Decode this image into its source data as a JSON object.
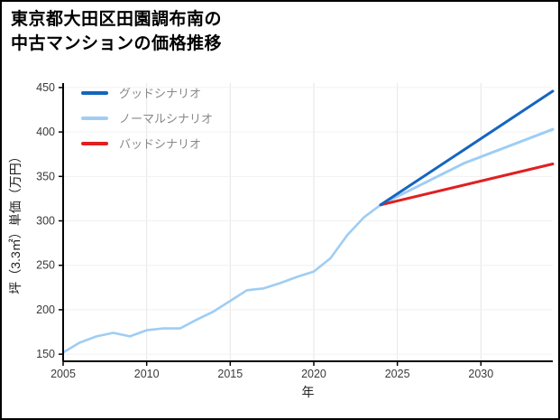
{
  "chart_data": {
    "type": "line",
    "title_lines": [
      "東京都大田区田園調布南の",
      "中古マンションの価格推移"
    ],
    "xlabel": "年",
    "ylabel": "坪（3.3㎡）単価（万円）",
    "xlim": [
      2005,
      2034.3
    ],
    "ylim": [
      142,
      455
    ],
    "xticks": [
      2005,
      2010,
      2015,
      2020,
      2025,
      2030
    ],
    "yticks": [
      150,
      200,
      250,
      300,
      350,
      400,
      450
    ],
    "grid": true,
    "legend_position": "upper-left",
    "colors": {
      "good": "#1565c0",
      "normal": "#9fcdf3",
      "bad": "#e02020",
      "history": "#9fcdf3"
    },
    "series": [
      {
        "id": "history",
        "color": "#9fcdf3",
        "width": 2.6,
        "x": [
          2005,
          2006,
          2007,
          2008,
          2009,
          2010,
          2011,
          2012,
          2013,
          2014,
          2015,
          2016,
          2017,
          2018,
          2019,
          2020,
          2021,
          2022,
          2023,
          2024
        ],
        "y": [
          152,
          163,
          170,
          174,
          170,
          177,
          179,
          179,
          189,
          198,
          210,
          222,
          224,
          230,
          237,
          243,
          258,
          284,
          304,
          318
        ]
      },
      {
        "id": "normal-scenario",
        "color": "#9fcdf3",
        "width": 3,
        "x": [
          2024,
          2029,
          2034.3
        ],
        "y": [
          318,
          365,
          403
        ]
      },
      {
        "id": "bad-scenario",
        "color": "#e02020",
        "width": 3,
        "x": [
          2024,
          2034.3
        ],
        "y": [
          318,
          364
        ]
      },
      {
        "id": "good-scenario",
        "color": "#1565c0",
        "width": 3,
        "x": [
          2024,
          2034.3
        ],
        "y": [
          318,
          446
        ]
      }
    ],
    "legend": [
      {
        "label": "グッドシナリオ",
        "color": "#1565c0"
      },
      {
        "label": "ノーマルシナリオ",
        "color": "#9fcdf3"
      },
      {
        "label": "バッドシナリオ",
        "color": "#e02020"
      }
    ]
  }
}
